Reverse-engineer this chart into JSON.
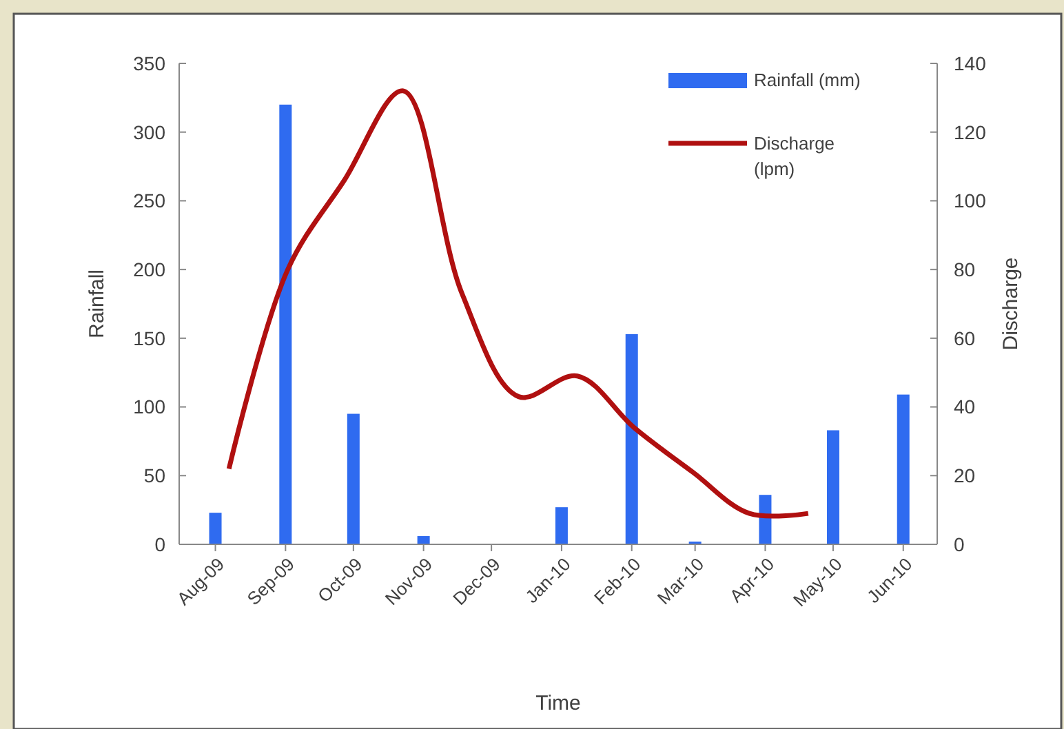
{
  "chart_data": {
    "type": "bar",
    "xlabel": "Time",
    "ylabel": "Rainfall",
    "y2label": "Discharge",
    "x": [
      "2009-08-15",
      "2009-09-15",
      "2009-10-15",
      "2009-11-15",
      "2009-12-15",
      "2010-01-15",
      "2010-02-15",
      "2010-03-15",
      "2010-04-15",
      "2010-05-15",
      "2010-06-15"
    ],
    "xlim": [
      "2009-07-30",
      "2010-06-30"
    ],
    "xticks": [
      {
        "value": "2009-08-15",
        "label": "Aug-09"
      },
      {
        "value": "2009-09-15",
        "label": "Sep-09"
      },
      {
        "value": "2009-10-15",
        "label": "Oct-09"
      },
      {
        "value": "2009-11-15",
        "label": "Nov-09"
      },
      {
        "value": "2009-12-15",
        "label": "Dec-09"
      },
      {
        "value": "2010-01-15",
        "label": "Jan-10"
      },
      {
        "value": "2010-02-15",
        "label": "Feb-10"
      },
      {
        "value": "2010-03-15",
        "label": "Mar-10"
      },
      {
        "value": "2010-04-15",
        "label": "Apr-10"
      },
      {
        "value": "2010-05-15",
        "label": "May-10"
      },
      {
        "value": "2010-06-15",
        "label": "Jun-10"
      }
    ],
    "series": [
      {
        "name": "Rainfall (mm)",
        "color": "#2f6bf0",
        "values": [
          23,
          320,
          95,
          6,
          0,
          27,
          153,
          2,
          36,
          83,
          109
        ]
      },
      {
        "name": "Discharge (lpm)",
        "type": "line",
        "axis": "y2",
        "color": "#b01010",
        "x": [
          "2009-08-21",
          "2009-09-16",
          "2009-10-11",
          "2009-11-06",
          "2009-12-02",
          "2009-12-27",
          "2010-01-22",
          "2010-02-16",
          "2010-03-14",
          "2010-04-08",
          "2010-05-04"
        ],
        "values": [
          22,
          80,
          106,
          132,
          73,
          43,
          49,
          34,
          21,
          9,
          9
        ]
      }
    ],
    "ylim": [
      0,
      350
    ],
    "yticks": [
      0,
      50,
      100,
      150,
      200,
      250,
      300,
      350
    ],
    "y2lim": [
      0,
      140
    ],
    "y2ticks": [
      0,
      20,
      40,
      60,
      80,
      100,
      120,
      140
    ],
    "legend": "top right",
    "grid": false
  }
}
